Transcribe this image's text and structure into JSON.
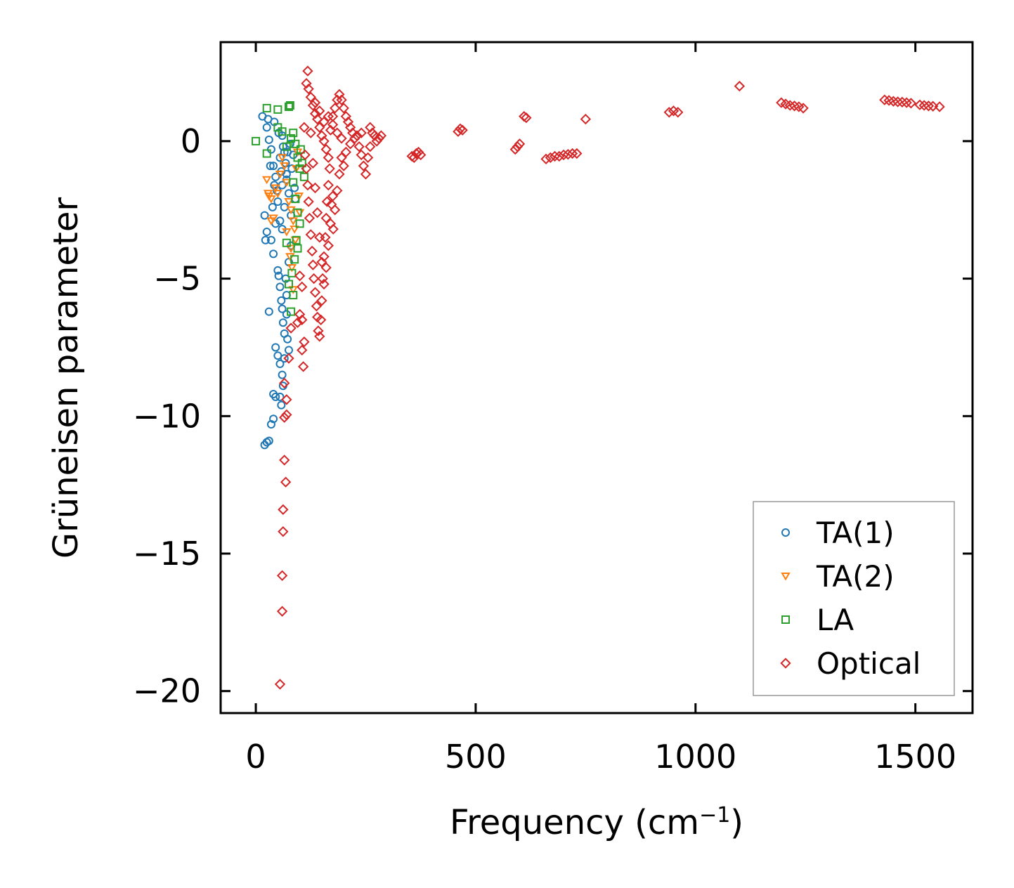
{
  "chart_data": {
    "type": "scatter",
    "title": "",
    "xlabel": "Frequency (cm",
    "xlabel_sup": "−1",
    "xlabel_end": ")",
    "ylabel": "Grüneisen parameter",
    "xlim": [
      -80,
      1630
    ],
    "ylim": [
      -20.8,
      3.6
    ],
    "xticks": [
      0,
      500,
      1000,
      1500
    ],
    "xtick_labels": [
      "0",
      "500",
      "1000",
      "1500"
    ],
    "yticks": [
      0,
      -5,
      -10,
      -15,
      -20
    ],
    "ytick_labels": [
      "0",
      "−5",
      "−10",
      "−15",
      "−20"
    ],
    "grid": false,
    "legend_position": "lower right",
    "series": [
      {
        "name": "TA(1)",
        "marker": "circle",
        "color": "#1f77b4",
        "points": [
          [
            15,
            0.9
          ],
          [
            25,
            0.5
          ],
          [
            30,
            0.05
          ],
          [
            35,
            -0.3
          ],
          [
            40,
            -0.9
          ],
          [
            42,
            0.7
          ],
          [
            45,
            -1.3
          ],
          [
            48,
            -1.8
          ],
          [
            50,
            -2.2
          ],
          [
            52,
            0.3
          ],
          [
            55,
            -0.6
          ],
          [
            58,
            -1.1
          ],
          [
            60,
            -1.6
          ],
          [
            62,
            -0.2
          ],
          [
            65,
            -2.4
          ],
          [
            68,
            -0.8
          ],
          [
            70,
            -1.4
          ],
          [
            72,
            -0.4
          ],
          [
            75,
            -1.9
          ],
          [
            78,
            -0.1
          ],
          [
            80,
            -2.7
          ],
          [
            82,
            -1.0
          ],
          [
            85,
            -0.5
          ],
          [
            88,
            -1.7
          ],
          [
            90,
            -2.1
          ],
          [
            20,
            -2.7
          ],
          [
            25,
            -3.3
          ],
          [
            22,
            -3.6
          ],
          [
            35,
            -3.6
          ],
          [
            40,
            -4.1
          ],
          [
            30,
            -6.2
          ],
          [
            50,
            -4.7
          ],
          [
            52,
            -4.9
          ],
          [
            55,
            -5.3
          ],
          [
            58,
            -5.8
          ],
          [
            60,
            -6.1
          ],
          [
            62,
            -6.6
          ],
          [
            65,
            -7.0
          ],
          [
            45,
            -7.5
          ],
          [
            50,
            -7.8
          ],
          [
            55,
            -8.1
          ],
          [
            60,
            -8.5
          ],
          [
            62,
            -8.9
          ],
          [
            55,
            -9.3
          ],
          [
            45,
            -9.3
          ],
          [
            40,
            -9.2
          ],
          [
            40,
            -10.1
          ],
          [
            35,
            -10.3
          ],
          [
            30,
            -10.9
          ],
          [
            25,
            -10.95
          ],
          [
            20,
            -11.05
          ],
          [
            70,
            -6.3
          ],
          [
            72,
            -7.2
          ],
          [
            75,
            -7.6
          ],
          [
            65,
            -7.9
          ],
          [
            68,
            -5.0
          ],
          [
            70,
            -5.6
          ],
          [
            75,
            -4.4
          ],
          [
            80,
            -3.8
          ],
          [
            60,
            -3.2
          ],
          [
            55,
            -2.9
          ],
          [
            45,
            -3.0
          ],
          [
            38,
            -2.4
          ],
          [
            42,
            -1.6
          ],
          [
            33,
            -0.9
          ],
          [
            28,
            0.8
          ],
          [
            60,
            0.2
          ],
          [
            65,
            -0.4
          ],
          [
            70,
            -1.2
          ],
          [
            58,
            -9.6
          ]
        ]
      },
      {
        "name": "TA(2)",
        "marker": "triangle-down",
        "color": "#ff7f0e",
        "points": [
          [
            25,
            -1.4
          ],
          [
            28,
            -1.9
          ],
          [
            30,
            -2.0
          ],
          [
            35,
            -2.1
          ],
          [
            40,
            -2.8
          ],
          [
            45,
            -1.7
          ],
          [
            55,
            -1.2
          ],
          [
            60,
            -0.6
          ],
          [
            65,
            -0.9
          ],
          [
            70,
            -1.5
          ],
          [
            75,
            -2.2
          ],
          [
            80,
            -2.5
          ],
          [
            85,
            -2.9
          ],
          [
            88,
            -3.2
          ],
          [
            90,
            -3.6
          ],
          [
            92,
            -1.0
          ],
          [
            95,
            -0.4
          ],
          [
            98,
            -2.0
          ],
          [
            100,
            -2.6
          ],
          [
            78,
            -4.2
          ],
          [
            82,
            -4.6
          ],
          [
            85,
            -5.4
          ],
          [
            80,
            -3.9
          ],
          [
            70,
            -3.3
          ],
          [
            35,
            -2.9
          ],
          [
            50,
            -1.9
          ]
        ]
      },
      {
        "name": "LA",
        "marker": "square",
        "color": "#2ca02c",
        "points": [
          [
            0,
            0.0
          ],
          [
            25,
            1.2
          ],
          [
            50,
            1.15
          ],
          [
            75,
            1.25
          ],
          [
            78,
            1.3
          ],
          [
            25,
            -0.45
          ],
          [
            50,
            0.5
          ],
          [
            60,
            0.35
          ],
          [
            70,
            -0.2
          ],
          [
            80,
            0.1
          ],
          [
            85,
            0.3
          ],
          [
            90,
            -0.1
          ],
          [
            95,
            -0.6
          ],
          [
            100,
            -1.0
          ],
          [
            102,
            -0.3
          ],
          [
            105,
            -0.8
          ],
          [
            110,
            -1.3
          ],
          [
            85,
            -1.5
          ],
          [
            90,
            -2.1
          ],
          [
            95,
            -2.6
          ],
          [
            100,
            -3.0
          ],
          [
            92,
            -3.6
          ],
          [
            95,
            -3.9
          ],
          [
            88,
            -4.3
          ],
          [
            82,
            -4.8
          ],
          [
            85,
            -5.6
          ],
          [
            80,
            -6.2
          ],
          [
            70,
            -3.7
          ],
          [
            75,
            -5.2
          ]
        ]
      },
      {
        "name": "Optical",
        "marker": "diamond",
        "color": "#d62728",
        "points": [
          [
            118,
            2.55
          ],
          [
            115,
            2.1
          ],
          [
            120,
            1.9
          ],
          [
            125,
            1.6
          ],
          [
            130,
            1.3
          ],
          [
            135,
            1.0
          ],
          [
            140,
            0.8
          ],
          [
            145,
            0.5
          ],
          [
            150,
            0.2
          ],
          [
            155,
            0.0
          ],
          [
            160,
            -0.3
          ],
          [
            165,
            -0.6
          ],
          [
            170,
            0.4
          ],
          [
            175,
            0.9
          ],
          [
            180,
            1.2
          ],
          [
            185,
            1.5
          ],
          [
            190,
            1.7
          ],
          [
            195,
            1.5
          ],
          [
            200,
            1.2
          ],
          [
            205,
            0.9
          ],
          [
            210,
            0.7
          ],
          [
            215,
            0.5
          ],
          [
            220,
            0.3
          ],
          [
            225,
            0.1
          ],
          [
            230,
            0.2
          ],
          [
            235,
            -0.2
          ],
          [
            240,
            -0.5
          ],
          [
            245,
            -0.9
          ],
          [
            250,
            -1.2
          ],
          [
            255,
            -0.6
          ],
          [
            260,
            -0.2
          ],
          [
            265,
            0.3
          ],
          [
            270,
            0.2
          ],
          [
            275,
            0.0
          ],
          [
            280,
            0.1
          ],
          [
            285,
            0.2
          ],
          [
            110,
            0.5
          ],
          [
            112,
            -0.5
          ],
          [
            115,
            -1.0
          ],
          [
            118,
            -1.6
          ],
          [
            120,
            -2.2
          ],
          [
            122,
            -2.8
          ],
          [
            125,
            -3.4
          ],
          [
            128,
            -4.0
          ],
          [
            130,
            -4.5
          ],
          [
            132,
            -5.0
          ],
          [
            135,
            -5.5
          ],
          [
            138,
            -6.0
          ],
          [
            140,
            -6.4
          ],
          [
            142,
            -6.9
          ],
          [
            145,
            -7.1
          ],
          [
            148,
            -6.5
          ],
          [
            150,
            -5.8
          ],
          [
            152,
            -5.0
          ],
          [
            155,
            -4.2
          ],
          [
            158,
            -3.5
          ],
          [
            160,
            -2.8
          ],
          [
            162,
            -2.2
          ],
          [
            165,
            -1.6
          ],
          [
            168,
            -1.0
          ],
          [
            172,
            -2.3
          ],
          [
            176,
            -3.2
          ],
          [
            180,
            -2.5
          ],
          [
            185,
            -1.8
          ],
          [
            190,
            -1.2
          ],
          [
            195,
            -0.6
          ],
          [
            200,
            -0.9
          ],
          [
            205,
            -0.4
          ],
          [
            125,
            0.3
          ],
          [
            130,
            -0.8
          ],
          [
            135,
            -1.7
          ],
          [
            140,
            -2.6
          ],
          [
            145,
            -3.5
          ],
          [
            150,
            -4.4
          ],
          [
            155,
            -5.2
          ],
          [
            160,
            -4.6
          ],
          [
            165,
            -3.8
          ],
          [
            170,
            -3.0
          ],
          [
            175,
            -2.0
          ],
          [
            135,
            1.4
          ],
          [
            145,
            1.1
          ],
          [
            155,
            0.7
          ],
          [
            165,
            0.9
          ],
          [
            175,
            0.6
          ],
          [
            185,
            0.3
          ],
          [
            195,
            0.1
          ],
          [
            215,
            -0.1
          ],
          [
            240,
            0.3
          ],
          [
            260,
            0.5
          ],
          [
            100,
            -4.9
          ],
          [
            105,
            -5.3
          ],
          [
            100,
            -6.3
          ],
          [
            95,
            -6.6
          ],
          [
            105,
            -6.5
          ],
          [
            110,
            -7.3
          ],
          [
            105,
            -7.6
          ],
          [
            108,
            -8.2
          ],
          [
            80,
            -6.8
          ],
          [
            75,
            -7.9
          ],
          [
            65,
            -8.8
          ],
          [
            70,
            -9.4
          ],
          [
            70,
            -9.95
          ],
          [
            65,
            -10.05
          ],
          [
            65,
            -11.6
          ],
          [
            68,
            -12.4
          ],
          [
            62,
            -13.4
          ],
          [
            62,
            -14.2
          ],
          [
            60,
            -15.8
          ],
          [
            60,
            -17.1
          ],
          [
            55,
            -19.75
          ],
          [
            365,
            -0.45
          ],
          [
            355,
            -0.55
          ],
          [
            370,
            -0.4
          ],
          [
            375,
            -0.5
          ],
          [
            360,
            -0.6
          ],
          [
            460,
            0.35
          ],
          [
            465,
            0.45
          ],
          [
            470,
            0.4
          ],
          [
            590,
            -0.3
          ],
          [
            595,
            -0.2
          ],
          [
            600,
            -0.1
          ],
          [
            610,
            0.9
          ],
          [
            615,
            0.85
          ],
          [
            660,
            -0.65
          ],
          [
            670,
            -0.6
          ],
          [
            680,
            -0.55
          ],
          [
            690,
            -0.55
          ],
          [
            700,
            -0.5
          ],
          [
            710,
            -0.48
          ],
          [
            720,
            -0.45
          ],
          [
            730,
            -0.45
          ],
          [
            750,
            0.8
          ],
          [
            940,
            1.05
          ],
          [
            950,
            1.1
          ],
          [
            960,
            1.05
          ],
          [
            1100,
            2.0
          ],
          [
            1195,
            1.4
          ],
          [
            1205,
            1.35
          ],
          [
            1215,
            1.3
          ],
          [
            1225,
            1.28
          ],
          [
            1235,
            1.25
          ],
          [
            1245,
            1.2
          ],
          [
            1430,
            1.5
          ],
          [
            1440,
            1.48
          ],
          [
            1450,
            1.45
          ],
          [
            1460,
            1.43
          ],
          [
            1470,
            1.42
          ],
          [
            1480,
            1.4
          ],
          [
            1490,
            1.38
          ],
          [
            1510,
            1.32
          ],
          [
            1520,
            1.3
          ],
          [
            1530,
            1.28
          ],
          [
            1540,
            1.27
          ],
          [
            1555,
            1.25
          ]
        ]
      }
    ]
  }
}
